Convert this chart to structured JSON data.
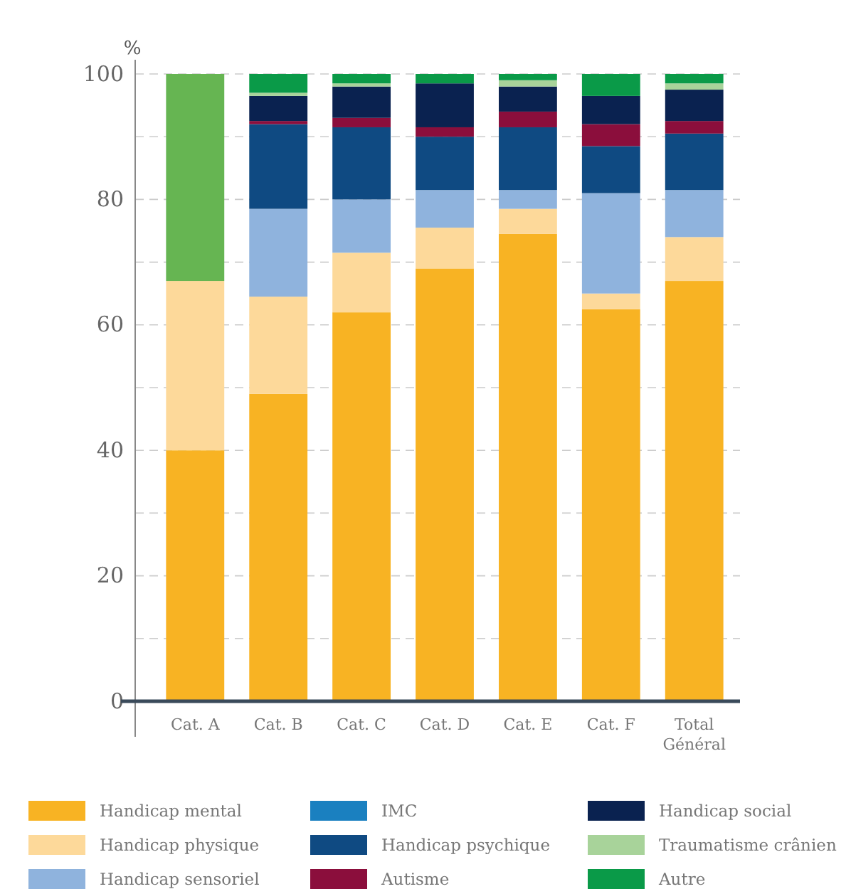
{
  "chart_data": {
    "type": "bar",
    "stacked": true,
    "ylabel": "%",
    "categories": [
      "Cat. A",
      "Cat. B",
      "Cat. C",
      "Cat. D",
      "Cat. E",
      "Cat. F",
      "Total Général"
    ],
    "ylim": [
      0,
      100
    ],
    "yticks": [
      0,
      {
        "value": 10,
        "label": null
      },
      20,
      {
        "value": 30,
        "label": null
      },
      40,
      {
        "value": 50,
        "label": null
      },
      60,
      {
        "value": 70,
        "label": null
      },
      80,
      {
        "value": 90,
        "label": null
      },
      100
    ],
    "grid": "y",
    "legend": "bottom",
    "series": [
      {
        "name": "Handicap mental",
        "color": "#f8b323",
        "values": [
          40,
          49,
          62,
          69,
          74.5,
          62.5,
          67
        ]
      },
      {
        "name": "Handicap physique",
        "color": "#fdd99a",
        "values": [
          27,
          15.5,
          9.5,
          6.5,
          4,
          2.5,
          7
        ]
      },
      {
        "name": "Handicap sensoriel",
        "color": "#8fb3dd",
        "values": [
          0,
          14,
          8.5,
          6,
          3,
          16,
          7.5
        ]
      },
      {
        "name": "IMC",
        "color": "#1a80c0",
        "values": [
          0,
          0,
          0,
          0,
          0,
          0,
          0
        ]
      },
      {
        "name": "Handicap psychique",
        "color": "#0f4a82",
        "values": [
          0,
          13.5,
          11.5,
          8.5,
          10,
          7.5,
          9
        ]
      },
      {
        "name": "Autisme",
        "color": "#8b0e3c",
        "values": [
          0,
          0.5,
          1.5,
          1.5,
          2.5,
          3.5,
          2
        ]
      },
      {
        "name": "Handicap social",
        "color": "#0a2250",
        "values": [
          0,
          4,
          5,
          7,
          4,
          4.5,
          5
        ]
      },
      {
        "name": "Traumatisme crânien",
        "color": "#a8d39a",
        "values": [
          0,
          0.5,
          0.5,
          0,
          1,
          0,
          1
        ]
      },
      {
        "name": "Autre",
        "color": "#0a9a48",
        "colors": [
          "#66b552",
          "#0a9a48",
          "#0a9a48",
          "#0a9a48",
          "#0a9a48",
          "#0a9a48",
          "#0a9a48"
        ],
        "values": [
          33,
          3,
          1.5,
          1.5,
          1,
          3.5,
          1.5
        ]
      }
    ]
  }
}
